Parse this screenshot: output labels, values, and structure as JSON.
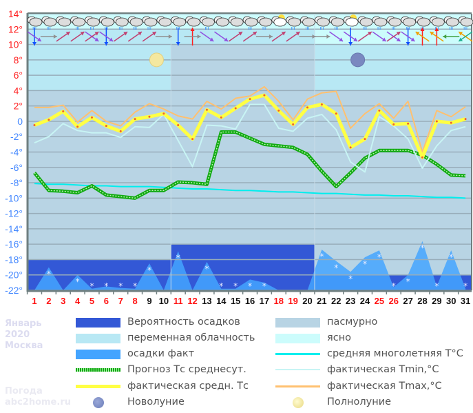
{
  "chart_data": {
    "type": "line",
    "title": "",
    "xlabel": "",
    "ylabel": "",
    "ylim": [
      -22,
      14
    ],
    "yticks": [
      "14°",
      "12°",
      "10°",
      "8°",
      "6°",
      "4°",
      "2°",
      "0",
      "-2°",
      "-4°",
      "-6°",
      "-8°",
      "-10°",
      "-12°",
      "-14°",
      "-16°",
      "-18°",
      "-20°",
      "-22°"
    ],
    "grid": true,
    "x": [
      1,
      2,
      3,
      4,
      5,
      6,
      7,
      8,
      9,
      10,
      11,
      12,
      13,
      14,
      15,
      16,
      17,
      18,
      19,
      20,
      21,
      22,
      23,
      24,
      25,
      26,
      27,
      28,
      29,
      30,
      31
    ],
    "weekend_days": [
      1,
      2,
      3,
      4,
      5,
      6,
      7,
      8,
      11,
      12,
      18,
      19,
      25,
      26
    ],
    "series": [
      {
        "name": "фактическая средн. Тс",
        "color": "#ffff44",
        "values": [
          -0.5,
          0.2,
          1.3,
          -0.7,
          0.5,
          -0.6,
          -1.3,
          0.3,
          0.6,
          1.0,
          -0.5,
          -2.3,
          1.5,
          0.5,
          1.7,
          2.9,
          3.4,
          1.4,
          -0.4,
          1.8,
          2.2,
          1.0,
          -3.4,
          -2.3,
          1.4,
          -0.4,
          -0.3,
          -4.7,
          0.0,
          -0.2,
          0.3
        ]
      },
      {
        "name": "фактическая Tmax,°C",
        "color": "#ffc070",
        "values": [
          1.8,
          1.8,
          2.1,
          -0.1,
          1.4,
          0.0,
          -0.6,
          1.2,
          2.3,
          1.6,
          0.7,
          0.3,
          2.6,
          1.6,
          3.0,
          3.3,
          4.5,
          2.6,
          0.2,
          2.9,
          3.7,
          3.9,
          -0.9,
          1.0,
          2.3,
          0.4,
          2.6,
          -4.0,
          1.4,
          0.6,
          1.9
        ]
      },
      {
        "name": "фактическая Tmin,°C",
        "color": "#c8f4f4",
        "values": [
          -2.8,
          -2.0,
          -0.3,
          -1.2,
          -1.5,
          -1.5,
          -2.1,
          -0.7,
          -0.8,
          0.9,
          -2.5,
          -5.9,
          -0.5,
          -0.6,
          -1.0,
          2.2,
          2.2,
          -0.9,
          -1.3,
          0.4,
          0.9,
          -1.1,
          -5.3,
          -6.6,
          0.6,
          -0.6,
          -2.3,
          -6.1,
          -3.2,
          -1.2,
          -0.7
        ]
      },
      {
        "name": "Прогноз Тс среднесут.",
        "color": "#11aa11",
        "values": [
          -6.7,
          -9.0,
          -9.1,
          -9.3,
          -8.4,
          -9.6,
          -9.8,
          -10.0,
          -9.0,
          -9.0,
          -7.9,
          -8.0,
          -8.2,
          -1.4,
          -1.4,
          -2.2,
          -3.0,
          -3.2,
          -3.4,
          -4.3,
          -6.5,
          -8.5,
          -6.7,
          -4.8,
          -3.8,
          -3.8,
          -3.8,
          -4.4,
          -5.6,
          -7.0,
          -7.1
        ]
      },
      {
        "name": "средняя многолетняя T°C",
        "color": "#00eeee",
        "values": [
          -8.1,
          -8.2,
          -8.2,
          -8.3,
          -8.4,
          -8.4,
          -8.5,
          -8.5,
          -8.5,
          -8.6,
          -8.7,
          -8.8,
          -8.8,
          -8.9,
          -9.0,
          -9.0,
          -9.1,
          -9.2,
          -9.2,
          -9.3,
          -9.4,
          -9.4,
          -9.5,
          -9.6,
          -9.6,
          -9.7,
          -9.7,
          -9.8,
          -9.9,
          -9.9,
          -10.0
        ]
      },
      {
        "name": "осадки факт",
        "color": "#44a4ff",
        "values": [
          -22,
          -19,
          -22,
          -20,
          -21.8,
          -21.5,
          -21.7,
          -21.8,
          -18.5,
          -22,
          -16.9,
          -22,
          -18.3,
          -21.8,
          -21.8,
          -20.6,
          -21,
          -22,
          -22,
          -22,
          -16.7,
          -18.2,
          -19.6,
          -17.7,
          -16.8,
          -21.6,
          -20,
          -15.6,
          -21.5,
          -16.8,
          -21.8
        ]
      }
    ],
    "precip_probability": [
      {
        "from_day": 1,
        "to_day": 10,
        "level": -18
      },
      {
        "from_day": 11,
        "to_day": 20,
        "level": -16
      },
      {
        "from_day": 21,
        "to_day": 31,
        "level": -20
      }
    ],
    "cloudiness": [
      {
        "from_day": 1,
        "to_day": 10,
        "type": "переменная облачность"
      },
      {
        "from_day": 11,
        "to_day": 20,
        "type": "пасмурно"
      },
      {
        "from_day": 21,
        "to_day": 31,
        "type": "ясно"
      }
    ],
    "weather_icons": [
      "snow-cloud",
      "snow-cloud",
      "cloud",
      "snow-cloud",
      "snow-cloud",
      "snow-cloud",
      "snow-cloud",
      "snow-cloud",
      "snow-cloud",
      "cloud",
      "snow-cloud",
      "cloud",
      "snow-cloud",
      "cloud",
      "cloud",
      "snow-cloud",
      "snow-cloud",
      "sun-cloud",
      "snow-cloud",
      "snow-cloud",
      "snow-cloud",
      "snow-cloud",
      "sun-cloud",
      "snow-cloud",
      "snow-cloud",
      "snow-cloud",
      "snow-cloud",
      "snow-cloud",
      "snow-cloud",
      "snow-cloud",
      "snow-cloud"
    ],
    "wind_arrows": [
      [
        90,
        35
      ],
      [
        0
      ],
      [
        -35
      ],
      [
        -35
      ],
      [
        35,
        -35
      ],
      [
        90,
        35
      ],
      [
        -35
      ],
      [
        -35
      ],
      [
        -35
      ],
      [
        0
      ],
      [
        90
      ],
      [
        -90,
        0
      ],
      [
        35
      ],
      [
        35
      ],
      [
        -35
      ],
      [
        -35
      ],
      [
        0
      ],
      [
        -35
      ],
      [
        -35
      ],
      [
        0
      ],
      [
        0
      ],
      [
        35
      ],
      [
        90,
        35
      ],
      [
        -35
      ],
      [
        35
      ],
      [
        35,
        -35
      ],
      [
        90,
        35
      ],
      [
        -90,
        -145
      ],
      [
        -90,
        -145
      ],
      [
        180
      ],
      [
        -145,
        145
      ]
    ],
    "moon_phases": [
      {
        "day": 10,
        "phase": "full"
      },
      {
        "day": 24,
        "phase": "new"
      }
    ],
    "legend_position": "bottom"
  },
  "colors": {
    "precip_probability": "#3358d6",
    "partly_cloudy": "#b8e8f4",
    "overcast": "#b8d4e4",
    "clear": "#ccfcfc",
    "precip_fact": "#44a4ff",
    "axis_positive": "#ff2020",
    "axis_negative": "#4488ff"
  },
  "legend": {
    "left": [
      {
        "label": "Вероятность осадков"
      },
      {
        "label": "переменная облачность"
      },
      {
        "label": "осадки факт"
      },
      {
        "label": "Прогноз Тс среднесут."
      },
      {
        "label": "фактическая средн. Тс"
      },
      {
        "label": "Новолуние"
      }
    ],
    "right": [
      {
        "label": "пасмурно"
      },
      {
        "label": "ясно"
      },
      {
        "label": "средняя многолетняя T°C"
      },
      {
        "label": "фактическая Tmin,°C"
      },
      {
        "label": "фактическая Tmax,°C"
      },
      {
        "label": "Полнолуние"
      }
    ]
  },
  "side_info": {
    "month": "Январь",
    "year": "2020",
    "city": "Москва",
    "brand_line1": "Погода",
    "brand_line2": "abc2home.ru"
  }
}
